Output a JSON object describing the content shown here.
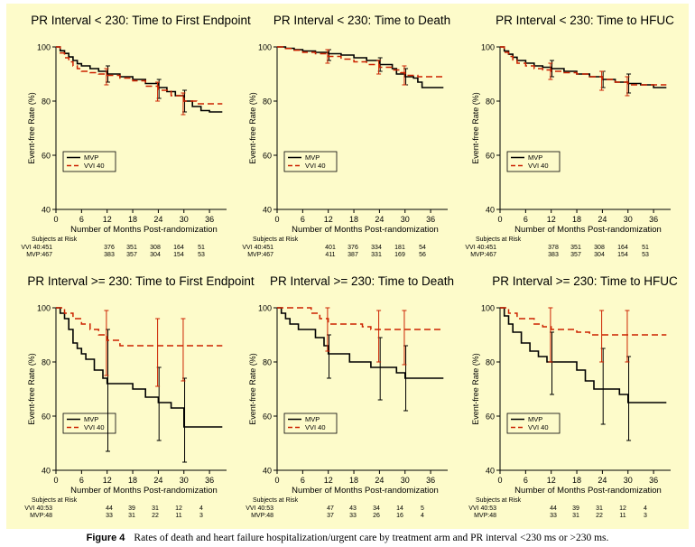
{
  "caption": {
    "label": "Figure 4",
    "text": "Rates of death and heart failure hospitalization/urgent care by treatment arm and PR interval <230 ms or >230 ms."
  },
  "colors": {
    "background": "#fdfbca",
    "mvp": "#000000",
    "vvi": "#cc2200"
  },
  "chart_data": [
    {
      "type": "line",
      "title": "PR Interval < 230: Time to First Endpoint",
      "xlabel": "Number of Months Post-randomization",
      "ylabel": "Event-free Rate (%)",
      "xlim": [
        0,
        40
      ],
      "ylim": [
        40,
        100
      ],
      "xticks": [
        0,
        6,
        12,
        18,
        24,
        30,
        36
      ],
      "yticks": [
        40,
        60,
        80,
        100
      ],
      "legend": [
        "MVP",
        "VVI 40"
      ],
      "series": [
        {
          "name": "MVP",
          "x": [
            0,
            1,
            2,
            3,
            4,
            5,
            6,
            8,
            10,
            12,
            15,
            18,
            21,
            24,
            26,
            28,
            30,
            32,
            34,
            36,
            39
          ],
          "y": [
            100,
            98.6,
            97.6,
            96.3,
            95,
            93.8,
            93,
            92,
            91,
            90,
            89,
            88,
            86.5,
            85,
            83.5,
            82,
            80,
            78,
            76.5,
            76,
            76
          ],
          "err": [
            {
              "x": 12,
              "lo": 87,
              "hi": 93
            },
            {
              "x": 24,
              "lo": 81,
              "hi": 88
            },
            {
              "x": 30,
              "lo": 76,
              "hi": 84
            }
          ]
        },
        {
          "name": "VVI 40",
          "x": [
            0,
            1,
            2,
            3,
            4,
            5,
            6,
            8,
            10,
            12,
            15,
            18,
            21,
            24,
            27,
            30,
            33,
            36,
            39
          ],
          "y": [
            100,
            97.8,
            96,
            94.5,
            93,
            92,
            91,
            90.5,
            90,
            89.5,
            88.5,
            87.5,
            85.5,
            84,
            82,
            80,
            79,
            79,
            79
          ],
          "err": [
            {
              "x": 12,
              "lo": 86,
              "hi": 92
            },
            {
              "x": 24,
              "lo": 80,
              "hi": 87
            },
            {
              "x": 30,
              "lo": 75,
              "hi": 83
            }
          ]
        }
      ],
      "risk": {
        "header": "Subjects at Risk",
        "rows": [
          {
            "label": "VVI 40:451",
            "values": [
              "376",
              "351",
              "308",
              "164",
              "51"
            ]
          },
          {
            "label": "MVP:467",
            "values": [
              "383",
              "357",
              "304",
              "154",
              "53"
            ]
          }
        ]
      }
    },
    {
      "type": "line",
      "title": "PR Interval < 230: Time to Death",
      "xlabel": "Number of Months Post-randomization",
      "ylabel": "Event-free Rate (%)",
      "xlim": [
        0,
        40
      ],
      "ylim": [
        40,
        100
      ],
      "xticks": [
        0,
        6,
        12,
        18,
        24,
        30,
        36
      ],
      "yticks": [
        40,
        60,
        80,
        100
      ],
      "legend": [
        "MVP",
        "VVI 40"
      ],
      "series": [
        {
          "name": "MVP",
          "x": [
            0,
            2,
            4,
            6,
            9,
            12,
            15,
            18,
            21,
            24,
            27,
            28,
            30,
            32,
            33,
            34,
            36,
            39
          ],
          "y": [
            100,
            99.5,
            99,
            98.5,
            98,
            97.5,
            97,
            96,
            95,
            93.5,
            92,
            90,
            89,
            88.5,
            87,
            85,
            85,
            85
          ],
          "err": [
            {
              "x": 12,
              "lo": 95,
              "hi": 99
            },
            {
              "x": 24,
              "lo": 91,
              "hi": 96
            },
            {
              "x": 30,
              "lo": 86,
              "hi": 92
            }
          ]
        },
        {
          "name": "VVI 40",
          "x": [
            0,
            2,
            4,
            6,
            9,
            12,
            15,
            18,
            21,
            24,
            27,
            29,
            30,
            33,
            36,
            39
          ],
          "y": [
            100,
            99.4,
            98.8,
            98,
            97.5,
            96.5,
            95.5,
            94.5,
            93.5,
            92.5,
            91.5,
            90.5,
            89.5,
            89,
            89,
            89
          ],
          "err": [
            {
              "x": 12,
              "lo": 94,
              "hi": 99
            },
            {
              "x": 24,
              "lo": 90,
              "hi": 95
            },
            {
              "x": 30,
              "lo": 86,
              "hi": 93
            }
          ]
        }
      ],
      "risk": {
        "header": "Subjects at Risk",
        "rows": [
          {
            "label": "VVI 40:451",
            "values": [
              "401",
              "376",
              "334",
              "181",
              "54"
            ]
          },
          {
            "label": "MVP:467",
            "values": [
              "411",
              "387",
              "331",
              "169",
              "56"
            ]
          }
        ]
      }
    },
    {
      "type": "line",
      "title": "PR Interval < 230: Time to HFUC",
      "xlabel": "Number of Months Post-randomization",
      "ylabel": "Event-free Rate (%)",
      "xlim": [
        0,
        40
      ],
      "ylim": [
        40,
        100
      ],
      "xticks": [
        0,
        6,
        12,
        18,
        24,
        30,
        36
      ],
      "yticks": [
        40,
        60,
        80,
        100
      ],
      "legend": [
        "MVP",
        "VVI 40"
      ],
      "series": [
        {
          "name": "MVP",
          "x": [
            0,
            1,
            2,
            3,
            4,
            6,
            8,
            10,
            12,
            15,
            18,
            21,
            24,
            27,
            30,
            33,
            36,
            39
          ],
          "y": [
            100,
            98.5,
            97.3,
            96.2,
            95,
            94,
            93,
            92.5,
            92,
            91,
            90,
            89,
            88,
            87,
            86.5,
            86,
            85,
            85
          ],
          "err": [
            {
              "x": 12,
              "lo": 89,
              "hi": 95
            },
            {
              "x": 24,
              "lo": 85,
              "hi": 91
            },
            {
              "x": 30,
              "lo": 83,
              "hi": 90
            }
          ]
        },
        {
          "name": "VVI 40",
          "x": [
            0,
            1,
            2,
            3,
            4,
            6,
            8,
            10,
            12,
            15,
            18,
            21,
            24,
            27,
            30,
            33,
            36,
            39
          ],
          "y": [
            100,
            98,
            96.5,
            95.2,
            94,
            93,
            92,
            91.5,
            91,
            90.5,
            90,
            89,
            88,
            87,
            86,
            86,
            86,
            86
          ],
          "err": [
            {
              "x": 12,
              "lo": 88,
              "hi": 94
            },
            {
              "x": 24,
              "lo": 84,
              "hi": 91
            },
            {
              "x": 30,
              "lo": 82,
              "hi": 89
            }
          ]
        }
      ],
      "risk": {
        "header": "Subjects at Risk",
        "rows": [
          {
            "label": "VVI 40:451",
            "values": [
              "378",
              "351",
              "308",
              "164",
              "51"
            ]
          },
          {
            "label": "MVP:467",
            "values": [
              "383",
              "357",
              "304",
              "154",
              "53"
            ]
          }
        ]
      }
    },
    {
      "type": "line",
      "title": "PR Interval >= 230: Time to First Endpoint",
      "xlabel": "Number of Months Post-randomization",
      "ylabel": "Event-free Rate (%)",
      "xlim": [
        0,
        40
      ],
      "ylim": [
        40,
        100
      ],
      "xticks": [
        0,
        6,
        12,
        18,
        24,
        30,
        36
      ],
      "yticks": [
        40,
        60,
        80,
        100
      ],
      "legend": [
        "MVP",
        "VVI 40"
      ],
      "series": [
        {
          "name": "MVP",
          "x": [
            0,
            1,
            2,
            3,
            4,
            5,
            6,
            7,
            9,
            11,
            12,
            18,
            21,
            24,
            27,
            30,
            33,
            39
          ],
          "y": [
            100,
            98,
            96,
            92,
            87,
            85,
            83,
            81,
            77,
            74,
            72,
            70,
            67,
            65,
            63,
            56,
            56,
            56
          ],
          "err": [
            {
              "x": 12,
              "lo": 47,
              "hi": 92
            },
            {
              "x": 24,
              "lo": 51,
              "hi": 78
            },
            {
              "x": 30,
              "lo": 43,
              "hi": 74
            }
          ]
        },
        {
          "name": "VVI 40",
          "x": [
            0,
            2,
            4,
            6,
            8,
            10,
            12,
            15,
            18,
            39
          ],
          "y": [
            100,
            98,
            96,
            94,
            92,
            90,
            88,
            86,
            86,
            86
          ],
          "err": [
            {
              "x": 12,
              "lo": 75,
              "hi": 99
            },
            {
              "x": 24,
              "lo": 71,
              "hi": 96
            },
            {
              "x": 30,
              "lo": 73,
              "hi": 96
            }
          ]
        }
      ],
      "risk": {
        "header": "Subjects at Risk",
        "rows": [
          {
            "label": "VVI 40:53",
            "values": [
              "44",
              "39",
              "31",
              "12",
              "4"
            ]
          },
          {
            "label": "MVP:48",
            "values": [
              "33",
              "31",
              "22",
              "11",
              "3"
            ]
          }
        ]
      }
    },
    {
      "type": "line",
      "title": "PR Interval >= 230: Time to Death",
      "xlabel": "Number of Months Post-randomization",
      "ylabel": "Event-free Rate (%)",
      "xlim": [
        0,
        40
      ],
      "ylim": [
        40,
        100
      ],
      "xticks": [
        0,
        6,
        12,
        18,
        24,
        30,
        36
      ],
      "yticks": [
        40,
        60,
        80,
        100
      ],
      "legend": [
        "MVP",
        "VVI 40"
      ],
      "series": [
        {
          "name": "MVP",
          "x": [
            0,
            1,
            2,
            3,
            5,
            7,
            9,
            11,
            12,
            17,
            22,
            24,
            28,
            30,
            39
          ],
          "y": [
            100,
            98,
            96,
            94,
            92,
            92,
            89,
            86,
            83,
            80,
            78,
            78,
            76,
            74,
            74
          ],
          "err": [
            {
              "x": 12,
              "lo": 74,
              "hi": 90
            },
            {
              "x": 24,
              "lo": 66,
              "hi": 89
            },
            {
              "x": 30,
              "lo": 62,
              "hi": 86
            }
          ]
        },
        {
          "name": "VVI 40",
          "x": [
            0,
            6,
            8,
            10,
            12,
            16,
            20,
            22,
            39
          ],
          "y": [
            100,
            100,
            98,
            96,
            94,
            94,
            93,
            92,
            92
          ],
          "err": [
            {
              "x": 12,
              "lo": 84,
              "hi": 100
            },
            {
              "x": 24,
              "lo": 80,
              "hi": 99
            },
            {
              "x": 30,
              "lo": 79,
              "hi": 99
            }
          ]
        }
      ],
      "risk": {
        "header": "Subjects at Risk",
        "rows": [
          {
            "label": "VVI 40:53",
            "values": [
              "47",
              "43",
              "34",
              "14",
              "5"
            ]
          },
          {
            "label": "MVP:48",
            "values": [
              "37",
              "33",
              "26",
              "16",
              "4"
            ]
          }
        ]
      }
    },
    {
      "type": "line",
      "title": "PR Interval >= 230: Time to HFUC",
      "xlabel": "Number of Months Post-randomization",
      "ylabel": "Event-free Rate (%)",
      "xlim": [
        0,
        40
      ],
      "ylim": [
        40,
        100
      ],
      "xticks": [
        0,
        6,
        12,
        18,
        24,
        30,
        36
      ],
      "yticks": [
        40,
        60,
        80,
        100
      ],
      "legend": [
        "MVP",
        "VVI 40"
      ],
      "series": [
        {
          "name": "MVP",
          "x": [
            0,
            1,
            2,
            3,
            5,
            7,
            9,
            11,
            12,
            18,
            20,
            22,
            24,
            28,
            30,
            39
          ],
          "y": [
            100,
            97,
            94,
            91,
            87,
            84,
            82,
            80,
            80,
            77,
            73,
            70,
            70,
            68,
            65,
            65
          ],
          "err": [
            {
              "x": 12,
              "lo": 68,
              "hi": 91
            },
            {
              "x": 24,
              "lo": 57,
              "hi": 85
            },
            {
              "x": 30,
              "lo": 51,
              "hi": 82
            }
          ]
        },
        {
          "name": "VVI 40",
          "x": [
            0,
            2,
            4,
            6,
            8,
            10,
            12,
            18,
            21,
            39
          ],
          "y": [
            100,
            98,
            96,
            96,
            94,
            93,
            92,
            91,
            90,
            90
          ],
          "err": [
            {
              "x": 12,
              "lo": 80,
              "hi": 100
            },
            {
              "x": 24,
              "lo": 80,
              "hi": 99
            },
            {
              "x": 30,
              "lo": 80,
              "hi": 99
            }
          ]
        }
      ],
      "risk": {
        "header": "Subjects at Risk",
        "rows": [
          {
            "label": "VVI 40:53",
            "values": [
              "44",
              "39",
              "31",
              "12",
              "4"
            ]
          },
          {
            "label": "MVP:48",
            "values": [
              "33",
              "31",
              "22",
              "11",
              "3"
            ]
          }
        ]
      }
    }
  ]
}
